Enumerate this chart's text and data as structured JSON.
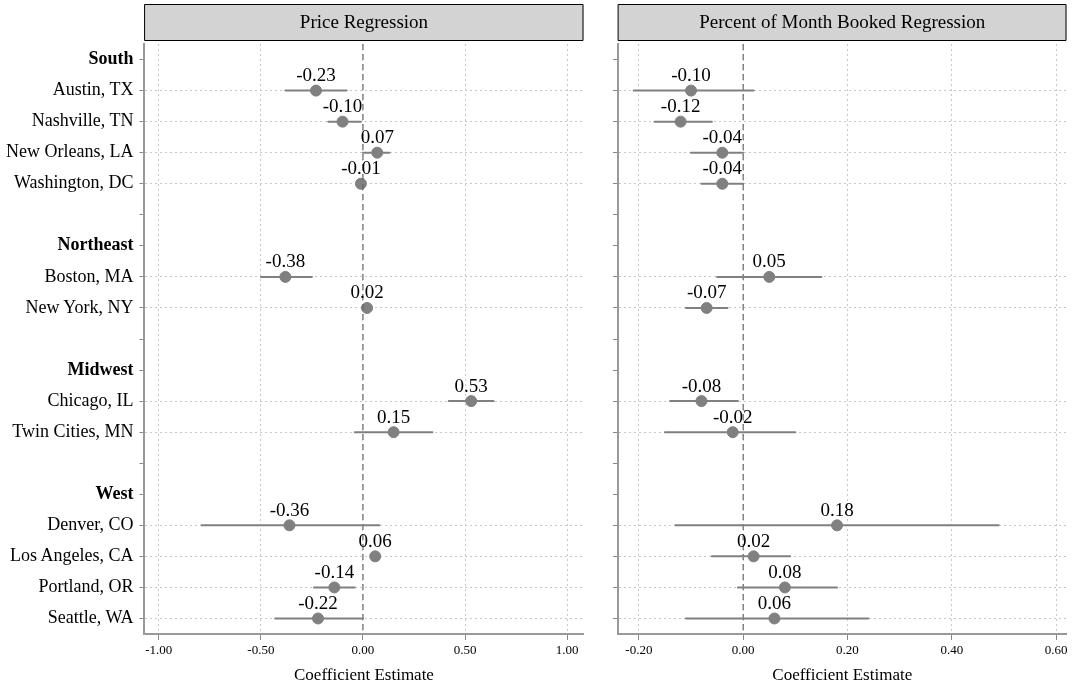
{
  "chart_data": [
    {
      "type": "scatter",
      "orientation": "horizontal",
      "title": "Price Regression",
      "xlabel": "Coefficient Estimate",
      "categories": [
        "South",
        "Austin, TX",
        "Nashville, TN",
        "New Orleans, LA",
        "Washington, DC",
        null,
        "Northeast",
        "Boston, MA",
        "New York, NY",
        null,
        "Midwest",
        "Chicago, IL",
        "Twin Cities, MN",
        null,
        "West",
        "Denver, CO",
        "Los Angeles, CA",
        "Portland, OR",
        "Seattle, WA"
      ],
      "values": [
        null,
        -0.23,
        -0.1,
        0.07,
        -0.01,
        null,
        null,
        -0.38,
        0.02,
        null,
        null,
        0.53,
        0.15,
        null,
        null,
        -0.36,
        0.06,
        -0.14,
        -0.22
      ],
      "errors": [
        null,
        [
          -0.38,
          -0.08
        ],
        [
          -0.17,
          -0.01
        ],
        [
          0.0,
          0.13
        ],
        null,
        null,
        null,
        [
          -0.5,
          -0.25
        ],
        null,
        null,
        null,
        [
          0.42,
          0.64
        ],
        [
          -0.04,
          0.34
        ],
        null,
        null,
        [
          -0.79,
          0.08
        ],
        null,
        [
          -0.24,
          -0.04
        ],
        [
          -0.43,
          0.0
        ]
      ],
      "value_labels": [
        null,
        "-0.23",
        "-0.10",
        "0.07",
        "-0.01",
        null,
        null,
        "-0.38",
        "0.02",
        null,
        null,
        "0.53",
        "0.15",
        null,
        null,
        "-0.36",
        "0.06",
        "-0.14",
        "-0.22"
      ],
      "color": "#808080",
      "marker": "circle",
      "grid": true,
      "legend": false,
      "xlim": [
        -1.07,
        1.08
      ],
      "xticks": [
        {
          "value": -1,
          "label": "-1.00"
        },
        {
          "value": -0.5,
          "label": "-0.50"
        },
        {
          "value": 0,
          "label": "0.00"
        },
        {
          "value": 0.5,
          "label": "0.50"
        },
        {
          "value": 1,
          "label": "1.00"
        }
      ],
      "ref_lines": [
        {
          "axis": "x",
          "value": 0,
          "line_style": "dashed",
          "color": "#666666"
        }
      ]
    },
    {
      "type": "scatter",
      "orientation": "horizontal",
      "title": "Percent of Month Booked Regression",
      "xlabel": "Coefficient Estimate",
      "categories": [
        null,
        null,
        null,
        null,
        null,
        null,
        null,
        null,
        null,
        null,
        null,
        null,
        null,
        null,
        null,
        null,
        null,
        null,
        null
      ],
      "values": [
        null,
        -0.1,
        -0.12,
        -0.04,
        -0.04,
        null,
        null,
        0.05,
        -0.07,
        null,
        null,
        -0.08,
        -0.02,
        null,
        null,
        0.18,
        0.02,
        0.08,
        0.06
      ],
      "errors": [
        null,
        [
          -0.21,
          0.02
        ],
        [
          -0.17,
          -0.06
        ],
        [
          -0.1,
          0.0
        ],
        [
          -0.08,
          0.0
        ],
        null,
        null,
        [
          -0.05,
          0.15
        ],
        [
          -0.11,
          -0.03
        ],
        null,
        null,
        [
          -0.14,
          -0.01
        ],
        [
          -0.15,
          0.1
        ],
        null,
        null,
        [
          -0.13,
          0.49
        ],
        [
          -0.06,
          0.09
        ],
        [
          -0.01,
          0.18
        ],
        [
          -0.11,
          0.24
        ]
      ],
      "value_labels": [
        null,
        "-0.10",
        "-0.12",
        "-0.04",
        "-0.04",
        null,
        null,
        "0.05",
        "-0.07",
        null,
        null,
        "-0.08",
        "-0.02",
        null,
        null,
        "0.18",
        "0.02",
        "0.08",
        "0.06"
      ],
      "color": "#808080",
      "marker": "circle",
      "grid": true,
      "legend": false,
      "tick_labels": "x",
      "xlim": [
        -0.24,
        0.62
      ],
      "xticks": [
        {
          "value": -0.2,
          "label": "-0.20"
        },
        {
          "value": 0,
          "label": "0.00"
        },
        {
          "value": 0.2,
          "label": "0.20"
        },
        {
          "value": 0.4,
          "label": "0.40"
        },
        {
          "value": 0.6,
          "label": "0.60"
        }
      ],
      "ref_lines": [
        {
          "axis": "x",
          "value": 0,
          "line_style": "dashed",
          "color": "#666666"
        }
      ]
    }
  ]
}
